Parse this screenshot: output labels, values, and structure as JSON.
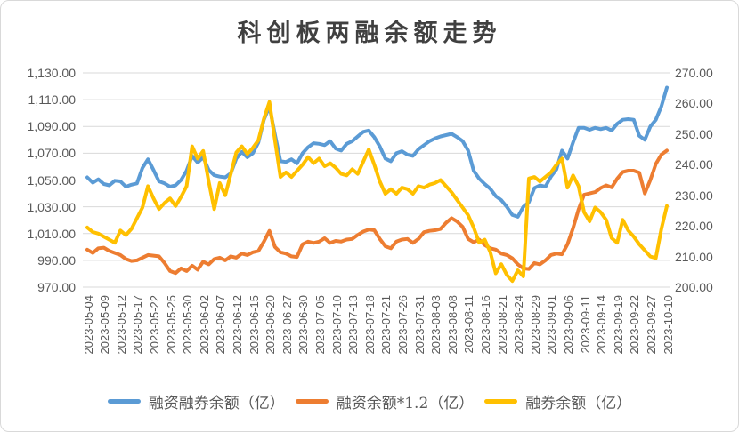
{
  "title": "科创板两融余额走势",
  "legend": [
    {
      "label": "融资融券余额（亿）",
      "color": "#5B9BD5"
    },
    {
      "label": "融资余额*1.2（亿）",
      "color": "#ED7D31"
    },
    {
      "label": "融券余额（亿）",
      "color": "#FFC000"
    }
  ],
  "colors": {
    "blue": "#5B9BD5",
    "orange": "#ED7D31",
    "yellow": "#FFC000",
    "gridline": "#D9D9D9",
    "axis_text": "#595959",
    "title_text": "#404040"
  },
  "chart_data": {
    "type": "line",
    "title": "科创板两融余额走势",
    "grid": true,
    "legend_position": "bottom",
    "x": [
      "2023-05-04",
      "2023-05-05",
      "2023-05-08",
      "2023-05-09",
      "2023-05-10",
      "2023-05-11",
      "2023-05-12",
      "2023-05-15",
      "2023-05-16",
      "2023-05-17",
      "2023-05-18",
      "2023-05-19",
      "2023-05-22",
      "2023-05-23",
      "2023-05-24",
      "2023-05-25",
      "2023-05-26",
      "2023-05-29",
      "2023-05-30",
      "2023-05-31",
      "2023-06-01",
      "2023-06-02",
      "2023-06-05",
      "2023-06-06",
      "2023-06-07",
      "2023-06-08",
      "2023-06-09",
      "2023-06-12",
      "2023-06-13",
      "2023-06-14",
      "2023-06-15",
      "2023-06-16",
      "2023-06-19",
      "2023-06-20",
      "2023-06-21",
      "2023-06-26",
      "2023-06-27",
      "2023-06-28",
      "2023-06-29",
      "2023-06-30",
      "2023-07-03",
      "2023-07-04",
      "2023-07-05",
      "2023-07-06",
      "2023-07-07",
      "2023-07-10",
      "2023-07-11",
      "2023-07-12",
      "2023-07-13",
      "2023-07-14",
      "2023-07-17",
      "2023-07-18",
      "2023-07-19",
      "2023-07-20",
      "2023-07-21",
      "2023-07-24",
      "2023-07-25",
      "2023-07-26",
      "2023-07-27",
      "2023-07-28",
      "2023-07-31",
      "2023-08-01",
      "2023-08-02",
      "2023-08-03",
      "2023-08-04",
      "2023-08-07",
      "2023-08-08",
      "2023-08-09",
      "2023-08-10",
      "2023-08-11",
      "2023-08-14",
      "2023-08-15",
      "2023-08-16",
      "2023-08-17",
      "2023-08-18",
      "2023-08-21",
      "2023-08-22",
      "2023-08-23",
      "2023-08-24",
      "2023-08-25",
      "2023-08-28",
      "2023-08-29",
      "2023-08-30",
      "2023-08-31",
      "2023-09-01",
      "2023-09-04",
      "2023-09-05",
      "2023-09-06",
      "2023-09-07",
      "2023-09-08",
      "2023-09-11",
      "2023-09-12",
      "2023-09-13",
      "2023-09-14",
      "2023-09-15",
      "2023-09-18",
      "2023-09-19",
      "2023-09-20",
      "2023-09-21",
      "2023-09-22",
      "2023-09-25",
      "2023-09-26",
      "2023-09-27",
      "2023-09-28",
      "2023-10-09",
      "2023-10-10"
    ],
    "x_tick_labels": [
      "2023-05-04",
      "2023-05-09",
      "2023-05-12",
      "2023-05-17",
      "2023-05-22",
      "2023-05-25",
      "2023-05-30",
      "2023-06-02",
      "2023-06-07",
      "2023-06-12",
      "2023-06-15",
      "2023-06-20",
      "2023-06-27",
      "2023-06-30",
      "2023-07-05",
      "2023-07-10",
      "2023-07-13",
      "2023-07-18",
      "2023-07-21",
      "2023-07-26",
      "2023-07-31",
      "2023-08-03",
      "2023-08-08",
      "2023-08-11",
      "2023-08-16",
      "2023-08-21",
      "2023-08-24",
      "2023-08-29",
      "2023-09-01",
      "2023-09-06",
      "2023-09-11",
      "2023-09-14",
      "2023-09-19",
      "2023-09-22",
      "2023-09-27",
      "2023-10-10"
    ],
    "x_tick_every": 3,
    "series": [
      {
        "name": "融资融券余额（亿）",
        "axis": "left",
        "color": "#5B9BD5",
        "values": [
          1052,
          1048,
          1050.5,
          1047,
          1046,
          1049.5,
          1049,
          1045,
          1046.5,
          1047.5,
          1059,
          1065.5,
          1057.5,
          1049,
          1047.5,
          1045,
          1046,
          1050,
          1057,
          1068,
          1063,
          1067,
          1057.5,
          1053.5,
          1052.5,
          1052,
          1055,
          1066,
          1071,
          1067,
          1070,
          1078,
          1095,
          1105,
          1084,
          1064,
          1063.5,
          1065.5,
          1062.5,
          1070,
          1074.5,
          1077.5,
          1077,
          1076,
          1079,
          1073.5,
          1072,
          1077,
          1079,
          1082.5,
          1086,
          1087,
          1082,
          1075,
          1066,
          1064,
          1070,
          1071.5,
          1069,
          1068,
          1073,
          1076,
          1079,
          1081,
          1082.5,
          1083.5,
          1084.5,
          1082,
          1079,
          1072,
          1057,
          1051,
          1047,
          1043.5,
          1038,
          1035,
          1030,
          1024,
          1022.5,
          1030,
          1033.5,
          1044,
          1046,
          1045,
          1052.5,
          1058,
          1072,
          1066,
          1078,
          1089,
          1089,
          1087.5,
          1089,
          1088,
          1089,
          1087,
          1092,
          1095,
          1095.5,
          1095,
          1083,
          1080,
          1090,
          1095,
          1105,
          1119
        ]
      },
      {
        "name": "融资余额*1.2（亿）",
        "axis": "left",
        "color": "#ED7D31",
        "values": [
          998,
          995.5,
          999,
          999.5,
          997,
          995.5,
          994,
          991,
          989.5,
          990,
          992,
          994,
          993.5,
          993,
          988,
          982,
          980.5,
          984,
          982,
          986,
          983,
          989,
          987,
          991,
          992,
          990,
          993,
          992,
          995,
          994,
          996,
          997,
          1004,
          1012,
          1000,
          996,
          995,
          993,
          992.5,
          1002,
          1004,
          1003,
          1004,
          1006.5,
          1003,
          1004.5,
          1004,
          1005.5,
          1006,
          1009,
          1011.5,
          1013,
          1012.5,
          1006,
          1000.5,
          999,
          1004,
          1005.5,
          1006,
          1003,
          1006,
          1011,
          1012,
          1012.5,
          1013.5,
          1018,
          1021.5,
          1019,
          1015,
          1006,
          1003.5,
          1005.5,
          1001.5,
          999,
          998,
          995,
          994,
          991.5,
          987,
          984,
          983.5,
          988,
          987,
          990,
          994,
          995,
          994.5,
          1002,
          1014,
          1028,
          1039,
          1040,
          1041,
          1044,
          1046,
          1044.5,
          1051,
          1056,
          1057,
          1057,
          1055.5,
          1040,
          1050,
          1062,
          1069,
          1072
        ]
      },
      {
        "name": "融券余额（亿）",
        "axis": "right",
        "color": "#FFC000",
        "values": [
          219.5,
          218,
          217.5,
          216.5,
          215.5,
          214.5,
          218.5,
          217,
          219,
          222.5,
          226,
          233,
          229,
          225.5,
          227.5,
          229,
          226.5,
          229.5,
          233,
          246,
          242,
          244.5,
          234.5,
          225.5,
          234,
          230,
          237,
          244,
          246,
          243.5,
          245.5,
          248,
          255,
          260.5,
          248,
          236,
          237.5,
          236,
          238,
          240,
          242.5,
          240.5,
          242,
          239.5,
          240.5,
          239,
          237,
          236.5,
          238.5,
          237,
          241,
          245,
          240,
          234.5,
          230.5,
          232,
          230.5,
          232.5,
          232,
          230.5,
          233,
          232.5,
          233.5,
          234,
          235,
          233,
          231,
          228.5,
          226,
          223.5,
          219.5,
          214.5,
          215.5,
          211.5,
          204.5,
          207.5,
          204,
          202,
          205.5,
          203.5,
          235.5,
          236,
          234.5,
          236,
          237.5,
          240,
          242,
          232.5,
          236.5,
          233,
          224.5,
          221.5,
          226,
          224.5,
          222,
          216,
          214.5,
          222,
          218.5,
          216.5,
          214,
          212,
          210,
          209.5,
          219,
          226.5
        ]
      }
    ],
    "left_axis": {
      "min": 970,
      "max": 1130,
      "step": 20,
      "tick_labels": [
        "1,130.00",
        "1,110.00",
        "1,090.00",
        "1,070.00",
        "1,050.00",
        "1,030.00",
        "1,010.00",
        "990.00",
        "970.00"
      ]
    },
    "right_axis": {
      "min": 200,
      "max": 270,
      "step": 10,
      "tick_labels": [
        "270.00",
        "260.00",
        "250.00",
        "240.00",
        "230.00",
        "220.00",
        "210.00",
        "200.00"
      ]
    }
  }
}
